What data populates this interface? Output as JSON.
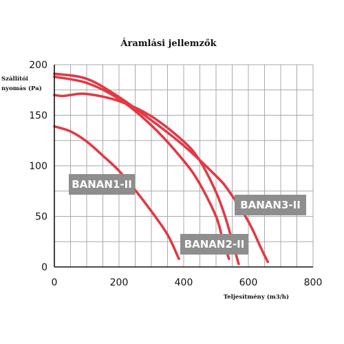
{
  "chart_data": {
    "type": "line",
    "title": "Áramlási jellemzők",
    "xlabel": "Teljesítmény (m3/h)",
    "ylabel_lines": [
      "Szállítói",
      "nyomás (Pa)"
    ],
    "xlim": [
      0,
      800
    ],
    "ylim": [
      0,
      200
    ],
    "xticks": [
      0,
      200,
      400,
      600,
      800
    ],
    "yticks": [
      0,
      50,
      100,
      150,
      200
    ],
    "grid": true,
    "colors": {
      "line": "#e03a45",
      "label_bg": "#8e8e8e",
      "label_text": "#ffffff"
    },
    "series": [
      {
        "name": "BANAN1-II",
        "points": [
          [
            0,
            139
          ],
          [
            50,
            134
          ],
          [
            100,
            124
          ],
          [
            150,
            110
          ],
          [
            200,
            95
          ],
          [
            250,
            76
          ],
          [
            300,
            55
          ],
          [
            350,
            32
          ],
          [
            385,
            8
          ]
        ]
      },
      {
        "name": "BANAN2-II",
        "points": [
          [
            0,
            170
          ],
          [
            25,
            169
          ],
          [
            50,
            170
          ],
          [
            100,
            171
          ],
          [
            200,
            164
          ],
          [
            300,
            149
          ],
          [
            400,
            124
          ],
          [
            450,
            105
          ],
          [
            500,
            74
          ],
          [
            530,
            48
          ],
          [
            555,
            20
          ],
          [
            570,
            3
          ]
        ]
      },
      {
        "name": "BANAN3-II",
        "points": [
          [
            0,
            191
          ],
          [
            100,
            186
          ],
          [
            200,
            168
          ],
          [
            300,
            145
          ],
          [
            400,
            120
          ],
          [
            500,
            90
          ],
          [
            540,
            75
          ],
          [
            600,
            45
          ],
          [
            640,
            18
          ],
          [
            660,
            5
          ]
        ]
      },
      {
        "name": "",
        "points": [
          [
            0,
            188
          ],
          [
            100,
            182
          ],
          [
            200,
            166
          ],
          [
            300,
            140
          ],
          [
            400,
            105
          ],
          [
            450,
            82
          ],
          [
            500,
            50
          ],
          [
            520,
            28
          ],
          [
            540,
            8
          ]
        ]
      }
    ]
  }
}
